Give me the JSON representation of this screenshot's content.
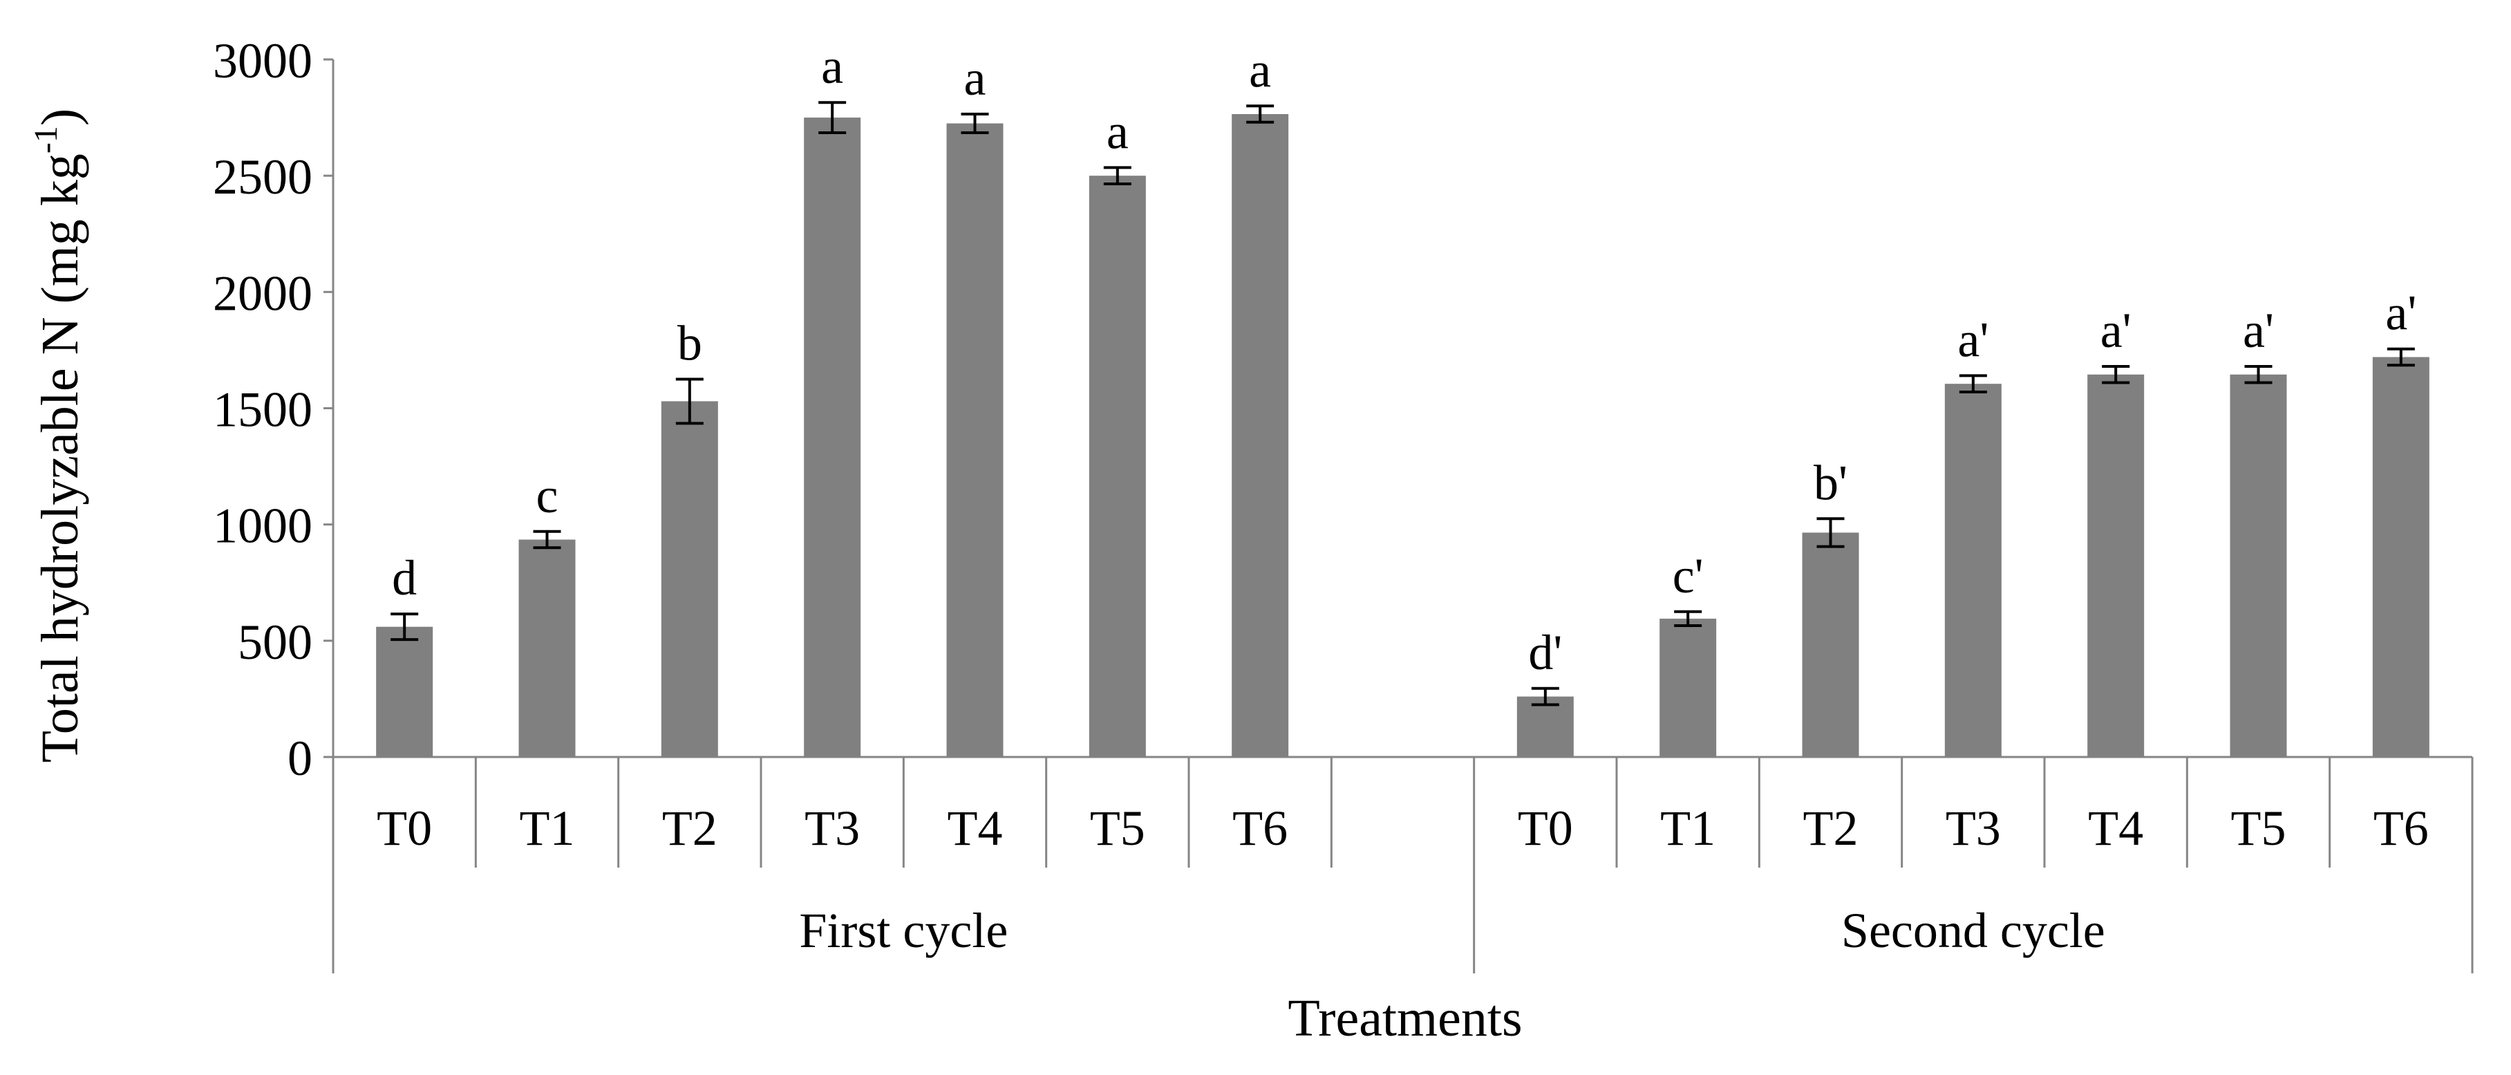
{
  "chart_data": {
    "type": "bar",
    "title": "",
    "ylabel": "Total hydrolyzable N (mg kg",
    "ylabel_sup": "-1",
    "ylabel_close": ")",
    "xlabel": "Treatments",
    "ylim": [
      0,
      3000
    ],
    "yticks": [
      0,
      500,
      1000,
      1500,
      2000,
      2500,
      3000
    ],
    "grid": false,
    "legend": "none",
    "bar_color": "#808080",
    "groups": [
      {
        "name": "First cycle",
        "categories": [
          "T0",
          "T1",
          "T2",
          "T3",
          "T4",
          "T5",
          "T6"
        ],
        "values": [
          560,
          935,
          1530,
          2750,
          2725,
          2500,
          2765
        ],
        "errors": [
          55,
          35,
          95,
          65,
          40,
          35,
          35
        ],
        "labels": [
          "d",
          "c",
          "b",
          "a",
          "a",
          "a",
          "a"
        ]
      },
      {
        "name": "Second cycle",
        "categories": [
          "T0",
          "T1",
          "T2",
          "T3",
          "T4",
          "T5",
          "T6"
        ],
        "values": [
          260,
          595,
          965,
          1605,
          1645,
          1645,
          1720
        ],
        "errors": [
          35,
          30,
          60,
          35,
          35,
          35,
          35
        ],
        "labels": [
          "d'",
          "c'",
          "b'",
          "a'",
          "a'",
          "a'",
          "a'"
        ]
      }
    ]
  }
}
